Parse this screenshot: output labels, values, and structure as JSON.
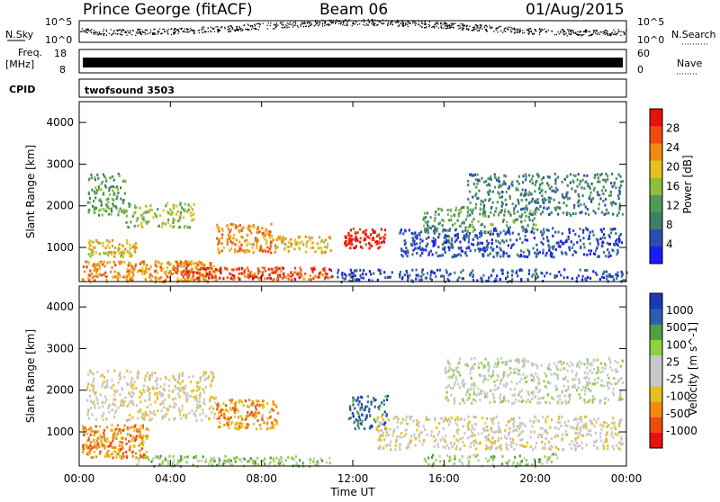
{
  "header": {
    "station": "Prince George (fitACF)",
    "beam": "Beam 06",
    "date": "01/Aug/2015"
  },
  "strips": {
    "nsky_label": "N.Sky",
    "nsearch_label": "N.Search",
    "nsky_ticks": [
      "10^5",
      "10^0"
    ],
    "nsearch_ticks": [
      "10^5",
      "10^0"
    ],
    "freq_label_1": "Freq.",
    "freq_label_2": "[MHz]",
    "freq_ticks": [
      "18",
      "8"
    ],
    "nave_label": "Nave",
    "nave_ticks": [
      "60",
      "0"
    ],
    "cpid_label": "CPID",
    "cpid_value": "twofsound 3503"
  },
  "colors": {
    "power_scale": [
      "#1a1aff",
      "#2a4fb0",
      "#3f7f6a",
      "#4f9a5a",
      "#8fbe3a",
      "#e6c020",
      "#f08a10",
      "#f04a10",
      "#e81010"
    ],
    "velocity_scale": [
      "#e81010",
      "#f04a10",
      "#f08a10",
      "#e6c020",
      "#c8c8c8",
      "#c8c8c8",
      "#8fd040",
      "#4fa040",
      "#2a5fb0",
      "#1a3ab8"
    ]
  },
  "chart_data": [
    {
      "type": "heatmap",
      "name": "power",
      "ylabel": "Slant Range [km]",
      "y_ticks": [
        "1000",
        "2000",
        "3000",
        "4000"
      ],
      "ylim": [
        180,
        4500
      ],
      "x_ticks": [
        "00:00",
        "04:00",
        "08:00",
        "12:00",
        "16:00",
        "20:00",
        "00:00"
      ],
      "colorbar_label": "Power [dB]",
      "colorbar_ticks": [
        "4",
        "8",
        "12",
        "16",
        "20",
        "24",
        "28"
      ],
      "scatter_regions": [
        {
          "t0": 0.1,
          "t1": 6.0,
          "r0": 200,
          "r1": 700,
          "level": 6,
          "density": 0.9
        },
        {
          "t0": 4.5,
          "t1": 11.0,
          "r0": 250,
          "r1": 550,
          "level": 7,
          "density": 0.95
        },
        {
          "t0": 0.2,
          "t1": 2.5,
          "r0": 800,
          "r1": 1200,
          "level": 5,
          "density": 0.8
        },
        {
          "t0": 0.3,
          "t1": 2.0,
          "r0": 1800,
          "r1": 2800,
          "level": 3,
          "density": 0.6
        },
        {
          "t0": 2.0,
          "t1": 5.0,
          "r0": 1500,
          "r1": 2100,
          "level": 4,
          "density": 0.6
        },
        {
          "t0": 6.0,
          "t1": 8.5,
          "r0": 900,
          "r1": 1600,
          "level": 6,
          "density": 0.75
        },
        {
          "t0": 8.5,
          "t1": 11.0,
          "r0": 900,
          "r1": 1300,
          "level": 5,
          "density": 0.7
        },
        {
          "t0": 11.6,
          "t1": 13.4,
          "r0": 1000,
          "r1": 1500,
          "level": 8,
          "density": 0.9
        },
        {
          "t0": 11.0,
          "t1": 24.0,
          "r0": 200,
          "r1": 500,
          "level": 1,
          "density": 0.55
        },
        {
          "t0": 14.0,
          "t1": 23.8,
          "r0": 800,
          "r1": 1500,
          "level": 1,
          "density": 0.6
        },
        {
          "t0": 17.0,
          "t1": 23.8,
          "r0": 1800,
          "r1": 2800,
          "level": 2,
          "density": 0.5
        },
        {
          "t0": 15.0,
          "t1": 20.0,
          "r0": 1400,
          "r1": 2000,
          "level": 3,
          "density": 0.45
        }
      ]
    },
    {
      "type": "heatmap",
      "name": "velocity",
      "ylabel": "Slant Range [km]",
      "y_ticks": [
        "1000",
        "2000",
        "3000",
        "4000"
      ],
      "ylim": [
        180,
        4500
      ],
      "x_ticks": [
        "00:00",
        "04:00",
        "08:00",
        "12:00",
        "16:00",
        "20:00",
        "00:00"
      ],
      "xlabel": "Time UT",
      "colorbar_label": "Velocity [m s^-1]",
      "colorbar_ticks": [
        "-1000",
        "-500",
        "-100",
        "-25",
        "25",
        "100",
        "500",
        "1000"
      ],
      "scatter_regions": [
        {
          "t0": 0.1,
          "t1": 3.0,
          "r0": 400,
          "r1": 1200,
          "level": 2,
          "density": 0.9
        },
        {
          "t0": 2.5,
          "t1": 11.0,
          "r0": 200,
          "r1": 450,
          "level": 6,
          "density": 0.7
        },
        {
          "t0": 6.0,
          "t1": 8.7,
          "r0": 1100,
          "r1": 1800,
          "level": 2,
          "density": 0.8
        },
        {
          "t0": 11.8,
          "t1": 13.5,
          "r0": 1100,
          "r1": 1900,
          "level": 8,
          "density": 0.6
        },
        {
          "t0": 0.3,
          "t1": 6.0,
          "r0": 1300,
          "r1": 2500,
          "level": 4,
          "density": 0.5
        },
        {
          "t0": 13.0,
          "t1": 23.8,
          "r0": 600,
          "r1": 1400,
          "level": 4,
          "density": 0.55
        },
        {
          "t0": 16.0,
          "t1": 23.8,
          "r0": 1700,
          "r1": 2800,
          "level": 5,
          "density": 0.5
        },
        {
          "t0": 15.0,
          "t1": 21.0,
          "r0": 200,
          "r1": 500,
          "level": 6,
          "density": 0.45
        }
      ]
    }
  ]
}
